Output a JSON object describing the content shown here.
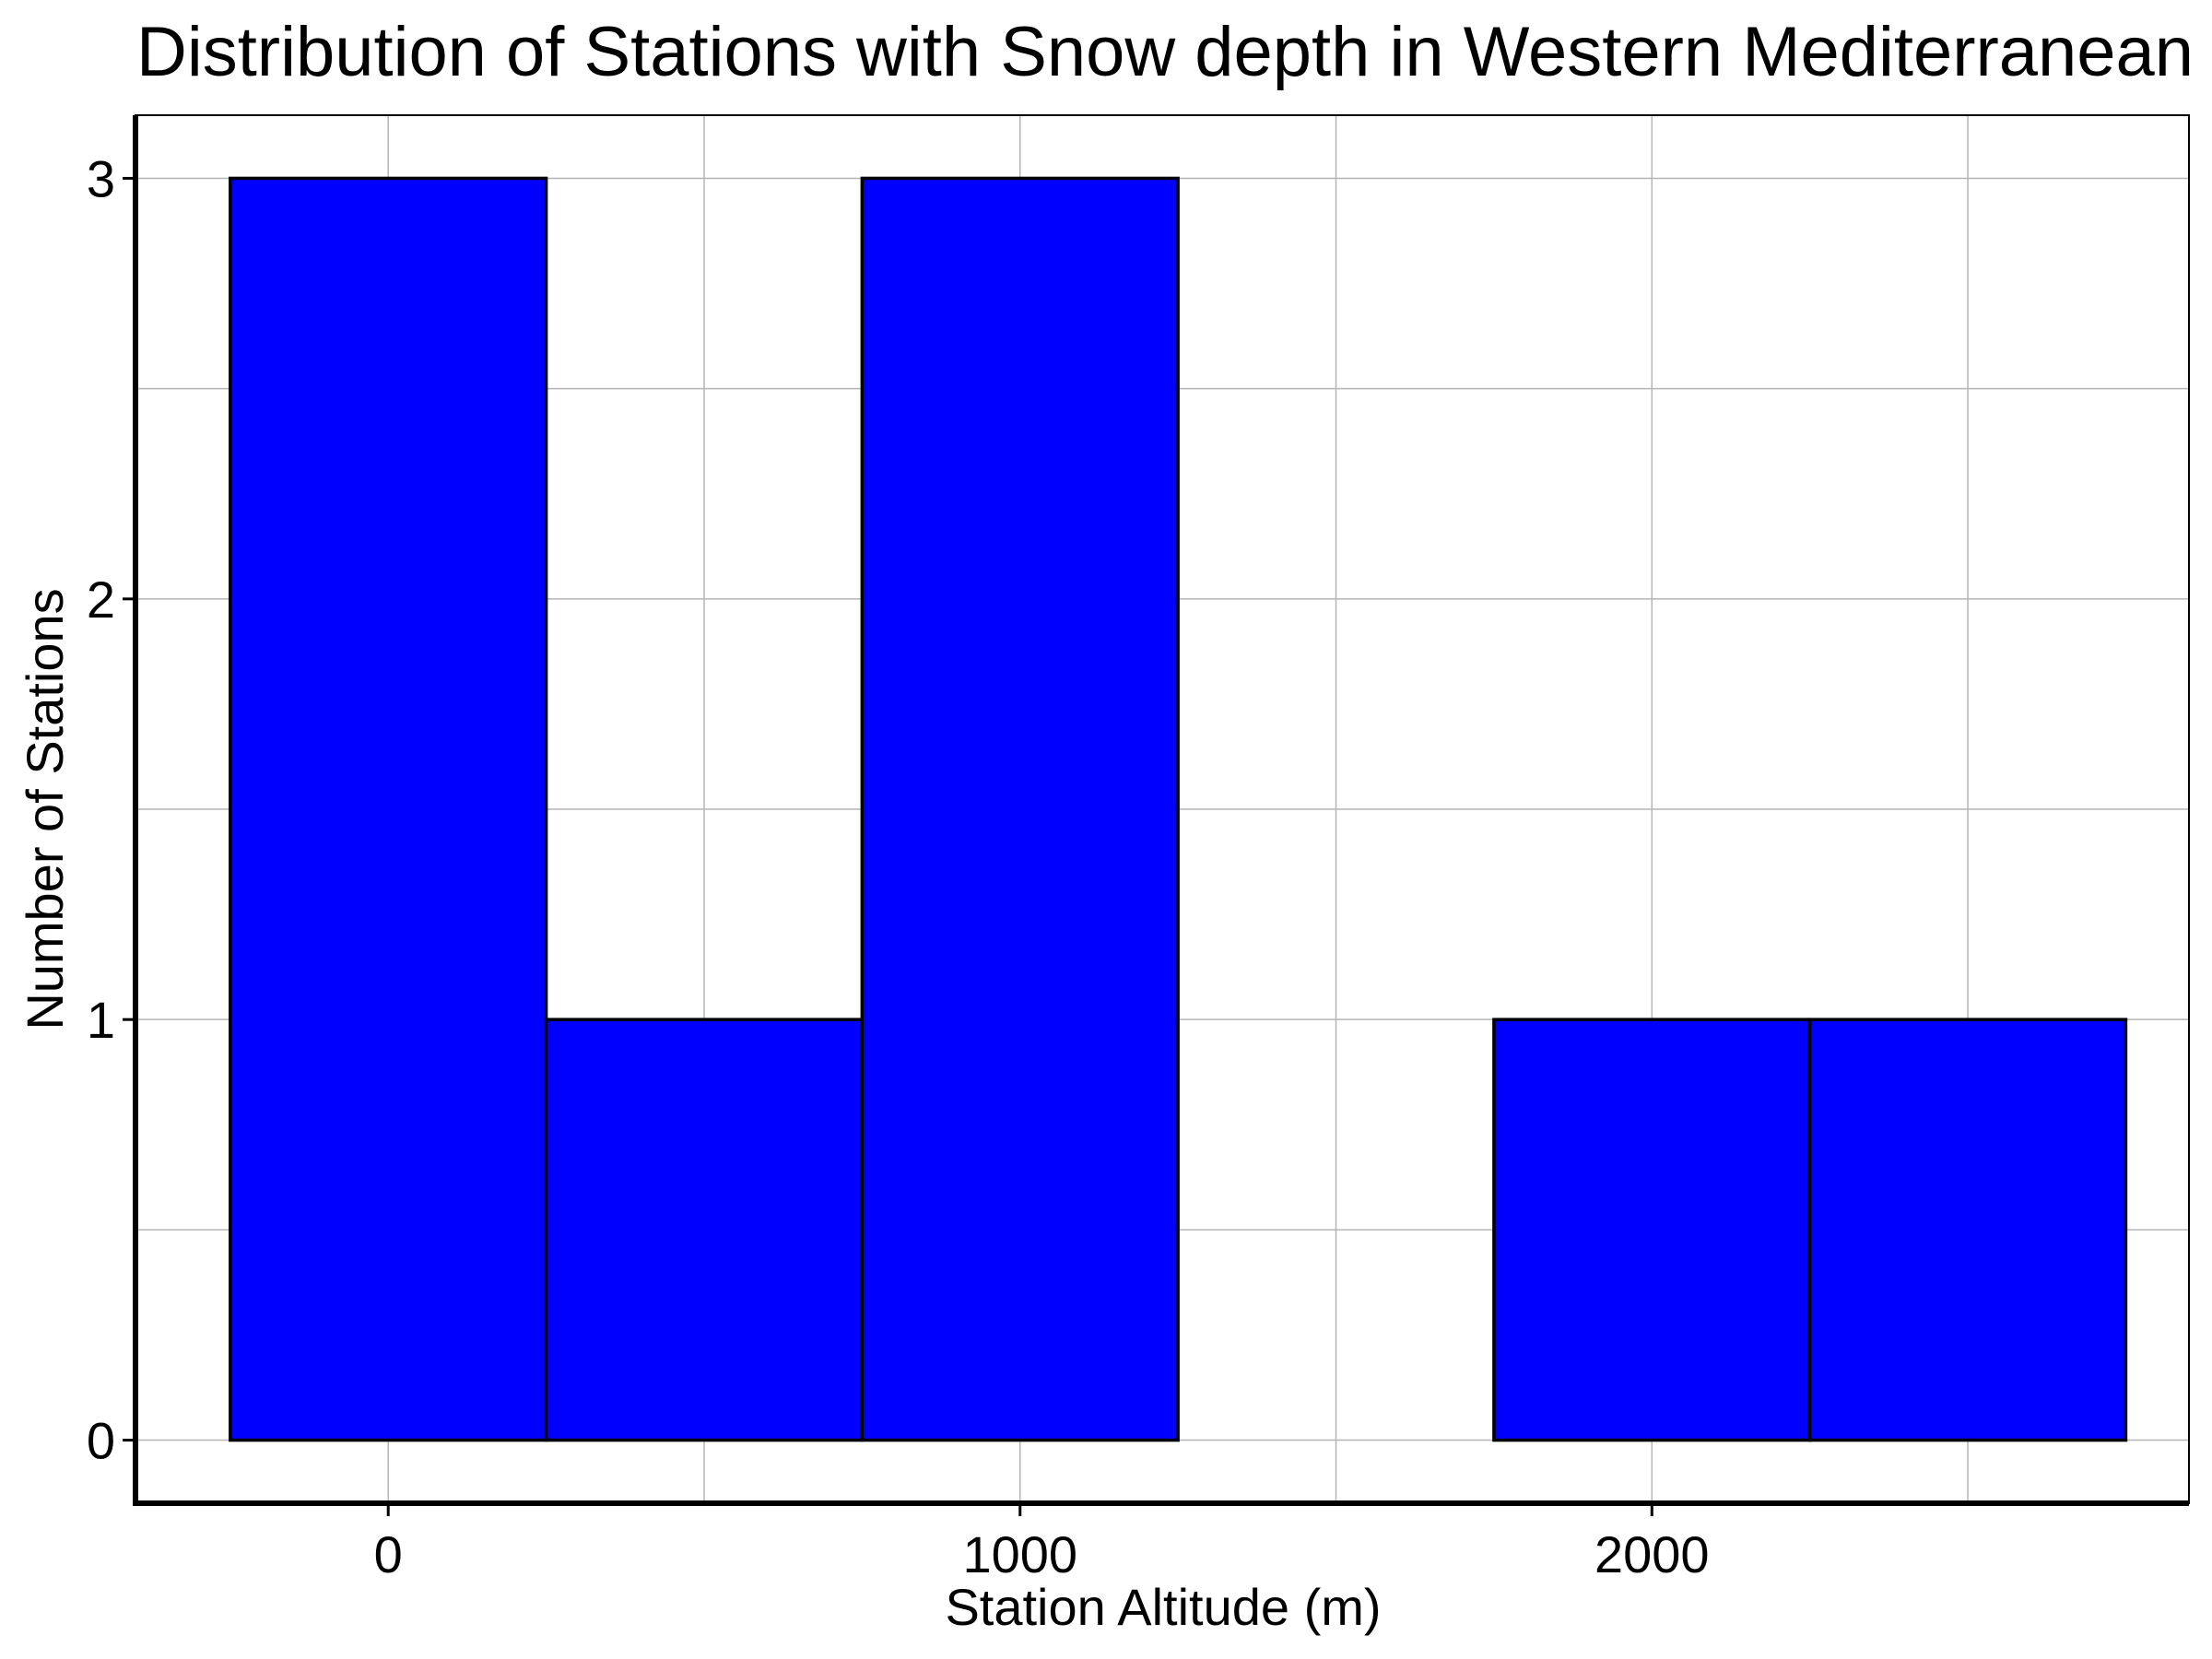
{
  "chart_data": {
    "type": "bar",
    "title": "Distribution of Stations with Snow depth in Western Mediterranean",
    "xlabel": "Station Altitude (m)",
    "ylabel": "Number of Stations",
    "bins": [
      {
        "start": -250,
        "end": 250,
        "count": 3
      },
      {
        "start": 250,
        "end": 750,
        "count": 1
      },
      {
        "start": 750,
        "end": 1250,
        "count": 3
      },
      {
        "start": 1250,
        "end": 1750,
        "count": 0
      },
      {
        "start": 1750,
        "end": 2250,
        "count": 1
      },
      {
        "start": 2250,
        "end": 2750,
        "count": 1
      }
    ],
    "xlim": [
      -400,
      2850
    ],
    "ylim": [
      -0.15,
      3.15
    ],
    "xticks": [
      0,
      1000,
      2000
    ],
    "yticks": [
      0,
      1,
      2,
      3
    ],
    "xgrid": [
      0,
      500,
      1000,
      1500,
      2000,
      2500
    ],
    "ygrid": [
      0,
      0.5,
      1,
      1.5,
      2,
      2.5,
      3
    ],
    "grid": true,
    "bar_color": "#0000ff",
    "edge_color": "#000000"
  }
}
